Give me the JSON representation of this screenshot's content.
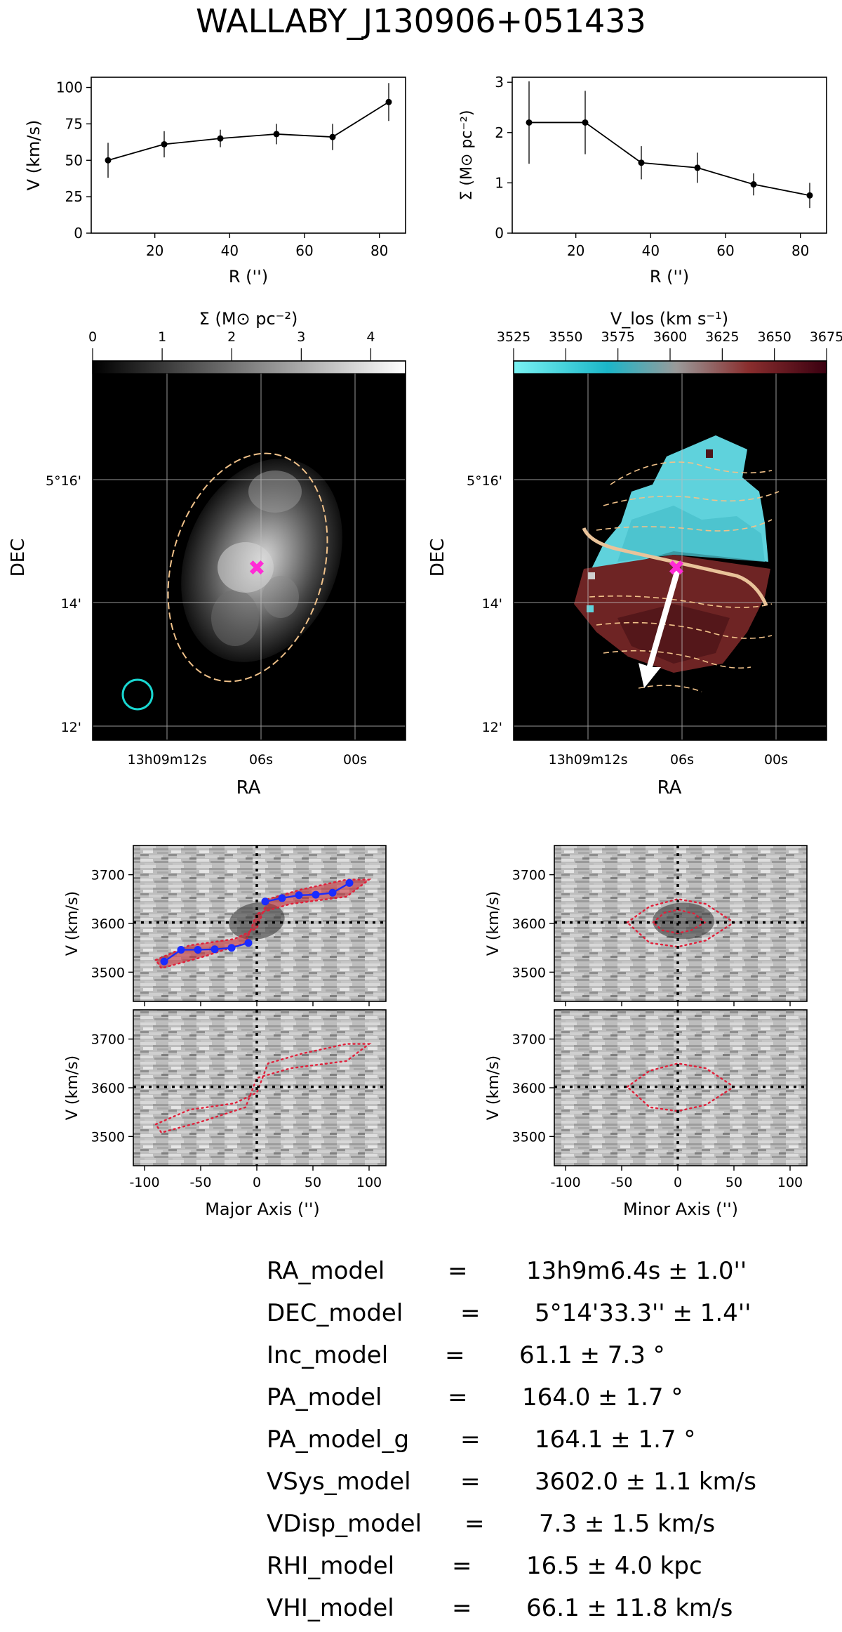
{
  "title": "WALLABY_J130906+051433",
  "colors": {
    "line": "#000000",
    "ellipse": "#f1c28a",
    "beam": "#19d6d0",
    "center": "#ff2bd6",
    "pv_points": "#1a2cff",
    "pv_contour": "#e0203a",
    "arrow": "#ffffff",
    "major_axis_line": "#e9c39a",
    "cmap_low": "#5ef0f0",
    "cmap_mid": "#9a9a9a",
    "cmap_high": "#3a0010"
  },
  "chart_data": [
    {
      "id": "rotation_curve",
      "type": "line",
      "xlabel": "R ('')",
      "ylabel": "V (km/s)",
      "xlim": [
        3,
        87
      ],
      "ylim": [
        0,
        107
      ],
      "xticks": [
        20,
        40,
        60,
        80
      ],
      "yticks": [
        0,
        25,
        50,
        75,
        100
      ],
      "series": [
        {
          "x": [
            7.5,
            22.5,
            37.5,
            52.5,
            67.5,
            82.5
          ],
          "y": [
            50,
            61,
            65,
            68,
            66,
            90
          ],
          "err": [
            12,
            9,
            6,
            7,
            9,
            13
          ]
        }
      ]
    },
    {
      "id": "surface_density_profile",
      "type": "line",
      "xlabel": "R ('')",
      "ylabel": "Σ (M⊙ pc⁻²)",
      "xlim": [
        3,
        87
      ],
      "ylim": [
        0,
        3.1
      ],
      "xticks": [
        20,
        40,
        60,
        80
      ],
      "yticks": [
        0,
        1,
        2,
        3
      ],
      "series": [
        {
          "x": [
            7.5,
            22.5,
            37.5,
            52.5,
            67.5,
            82.5
          ],
          "y": [
            2.2,
            2.2,
            1.4,
            1.3,
            0.97,
            0.75
          ],
          "err": [
            0.82,
            0.63,
            0.33,
            0.3,
            0.22,
            0.25
          ]
        }
      ]
    },
    {
      "id": "moment0_map",
      "type": "heatmap",
      "xlabel": "RA",
      "ylabel": "DEC",
      "colorbar_label": "Σ (M⊙ pc⁻²)",
      "colorbar_ticks": [
        "0",
        "1",
        "2",
        "3",
        "4"
      ],
      "colorbar_range": [
        0,
        4.5
      ],
      "xticklabels": [
        "13h09m12s",
        "06s",
        "00s"
      ],
      "yticklabels": [
        "5°16'",
        "14'",
        "12'"
      ]
    },
    {
      "id": "moment1_map",
      "type": "heatmap",
      "xlabel": "RA",
      "ylabel": "DEC",
      "colorbar_label": "V_los (km s⁻¹)",
      "colorbar_ticks": [
        "3525",
        "3550",
        "3575",
        "3600",
        "3625",
        "3650",
        "3675"
      ],
      "colorbar_range": [
        3525,
        3675
      ],
      "xticklabels": [
        "13h09m12s",
        "06s",
        "00s"
      ],
      "yticklabels": [
        "5°16'",
        "14'",
        "12'"
      ]
    },
    {
      "id": "pv_major",
      "type": "heatmap",
      "xlabel": "Major Axis ('')",
      "ylabel": "V (km/s)",
      "xlim": [
        -110,
        115
      ],
      "ylim": [
        3440,
        3760
      ],
      "xticks": [
        -100,
        -50,
        0,
        50,
        100
      ],
      "yticks": [
        3500,
        3600,
        3700
      ],
      "vsys": 3602,
      "rotation_points": {
        "x": [
          -82.5,
          -67.5,
          -52.5,
          -37.5,
          -22.5,
          -7.5,
          7.5,
          22.5,
          37.5,
          52.5,
          67.5,
          82.5
        ],
        "y": [
          3522,
          3546,
          3546,
          3547,
          3550,
          3560,
          3645,
          3652,
          3658,
          3659,
          3663,
          3683
        ]
      }
    },
    {
      "id": "pv_minor",
      "type": "heatmap",
      "xlabel": "Minor Axis ('')",
      "ylabel": "V (km/s)",
      "xlim": [
        -110,
        115
      ],
      "ylim": [
        3440,
        3760
      ],
      "xticks": [
        -100,
        -50,
        0,
        50,
        100
      ],
      "yticks": [
        3500,
        3600,
        3700
      ],
      "vsys": 3602
    }
  ],
  "params": [
    {
      "name": "RA_model",
      "eq": "=",
      "value": "13h9m6.4s ± 1.0''"
    },
    {
      "name": "DEC_model",
      "eq": "=",
      "value": "5°14'33.3'' ± 1.4''"
    },
    {
      "name": "Inc_model",
      "eq": "=",
      "value": "61.1 ± 7.3 °"
    },
    {
      "name": "PA_model",
      "eq": "=",
      "value": "164.0 ± 1.7 °"
    },
    {
      "name": "PA_model_g",
      "eq": "=",
      "value": "164.1 ± 1.7 °"
    },
    {
      "name": "VSys_model",
      "eq": "=",
      "value": "3602.0 ± 1.1 km/s"
    },
    {
      "name": "VDisp_model",
      "eq": "=",
      "value": "7.3 ± 1.5 km/s"
    },
    {
      "name": "RHI_model",
      "eq": "=",
      "value": "16.5 ± 4.0 kpc"
    },
    {
      "name": "VHI_model",
      "eq": "=",
      "value": "66.1 ± 11.8 km/s"
    }
  ]
}
